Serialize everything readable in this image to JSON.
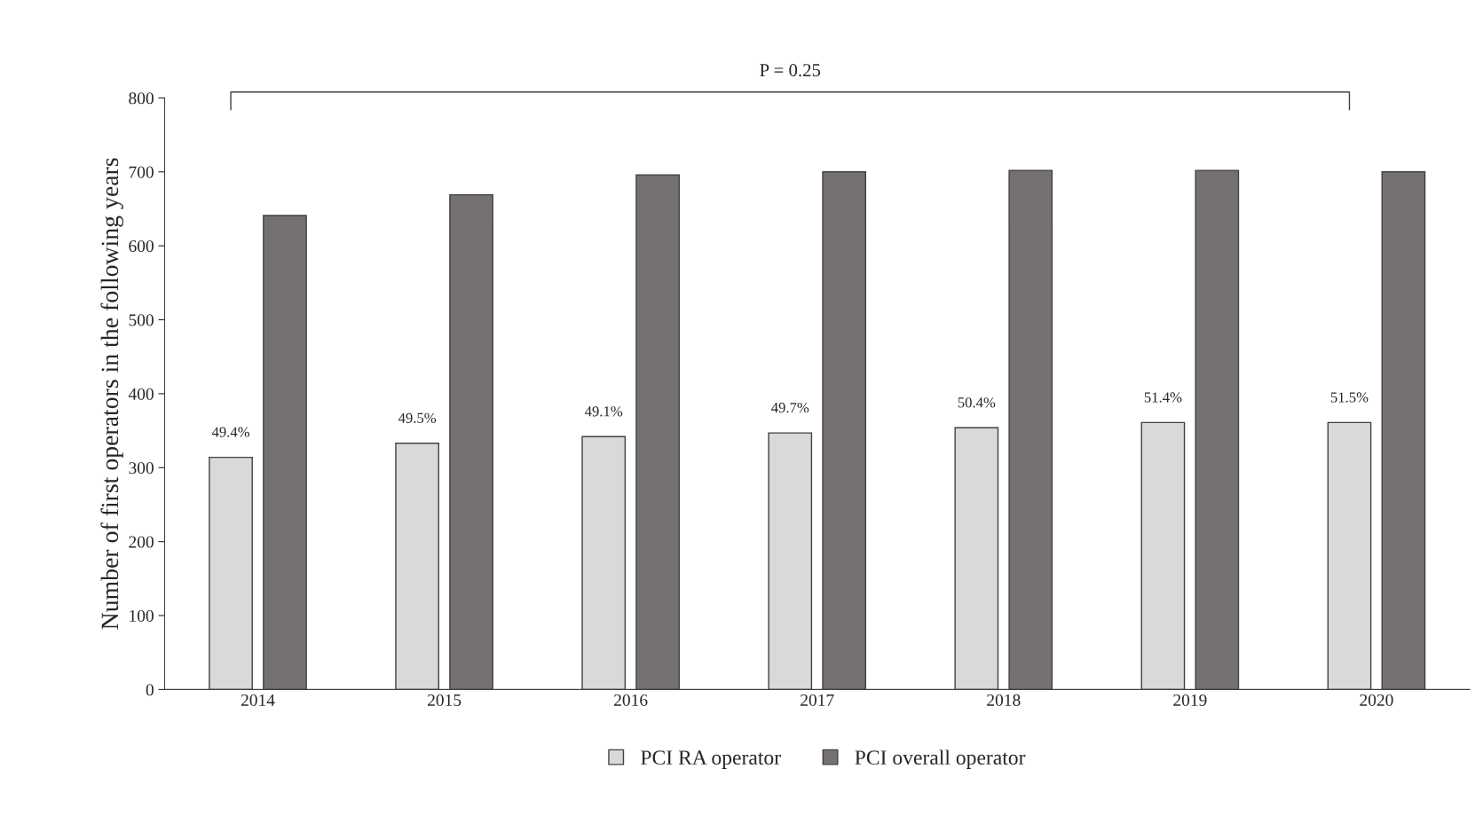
{
  "chart_data": {
    "type": "bar",
    "ylabel": "Number of first operators in the following years",
    "categories": [
      "2014",
      "2015",
      "2016",
      "2017",
      "2018",
      "2019",
      "2020"
    ],
    "series": [
      {
        "name": "PCI RA operator",
        "color": "#d9d9d9",
        "values": [
          314,
          333,
          342,
          347,
          354,
          361,
          361
        ]
      },
      {
        "name": "PCI overall operator",
        "color": "#767171",
        "values": [
          641,
          669,
          696,
          700,
          702,
          702,
          700
        ]
      }
    ],
    "ylim": [
      0,
      800
    ],
    "yticks": [
      0,
      100,
      200,
      300,
      400,
      500,
      600,
      700,
      800
    ],
    "annotations": [
      "P = 0.25",
      "49.4%",
      "49.5%",
      "49.1%",
      "49.7%",
      "50.4%",
      "51.4%",
      "51.5%"
    ],
    "grid": false,
    "legend": "bottom"
  }
}
